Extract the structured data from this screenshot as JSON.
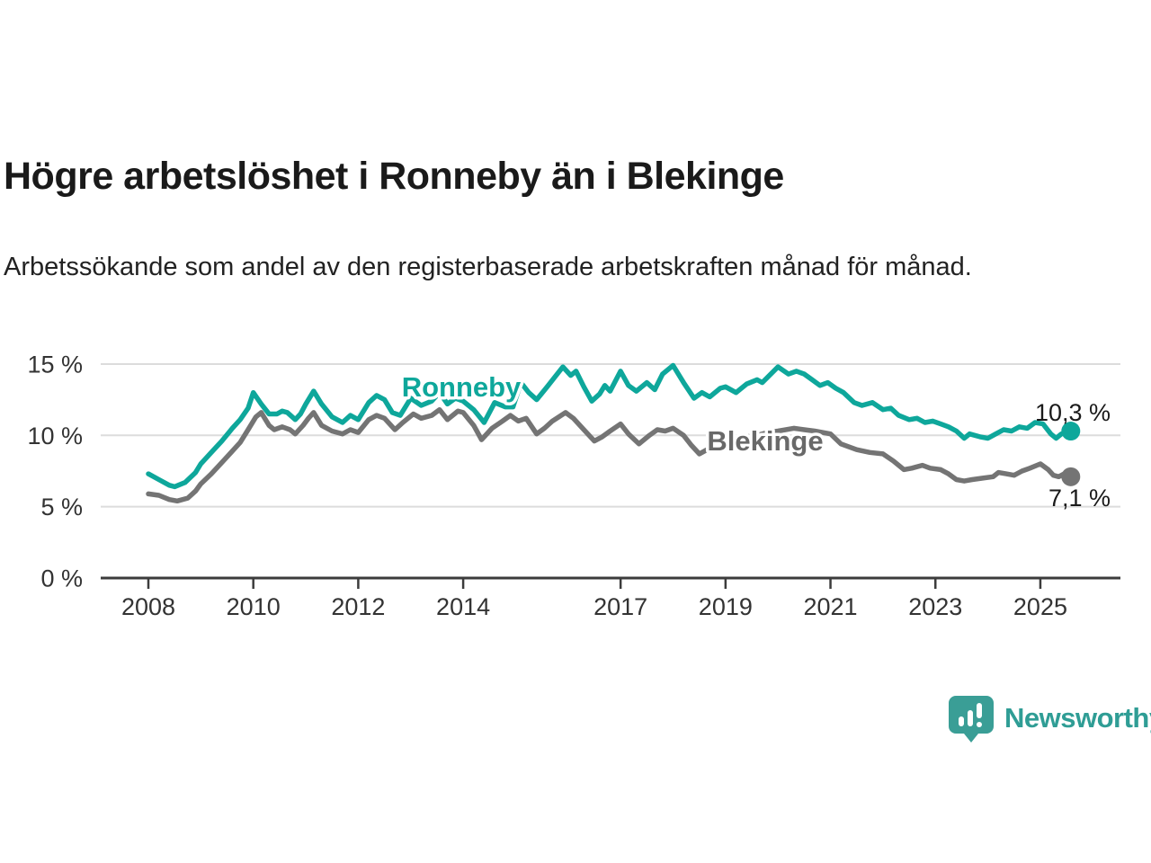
{
  "header": {
    "title": "Högre arbetslöshet i Ronneby än i Blekinge",
    "subtitle": "Arbetssökande som andel av den registerbaserade arbetskraften månad för månad."
  },
  "chart_data": {
    "type": "line",
    "title": "Högre arbetslöshet i Ronneby än i Blekinge",
    "subtitle": "Arbetssökande som andel av den registerbaserade arbetskraften månad för månad.",
    "grid": true,
    "xlim": [
      2007.1,
      2026.4
    ],
    "ylim": [
      0,
      15.8
    ],
    "x_ticks": [
      2008,
      2010,
      2012,
      2014,
      2017,
      2019,
      2021,
      2023,
      2025
    ],
    "y_ticks": [
      {
        "value": 15,
        "label": "15 %"
      },
      {
        "value": 10,
        "label": "10 %"
      },
      {
        "value": 5,
        "label": "5 %"
      },
      {
        "value": 0,
        "label": "0 %"
      }
    ],
    "series": [
      {
        "name": "Ronneby",
        "color": "#0ea79b",
        "end_label": "10,3 %",
        "points": [
          [
            2008.0,
            7.3
          ],
          [
            2008.2,
            6.9
          ],
          [
            2008.4,
            6.5
          ],
          [
            2008.5,
            6.4
          ],
          [
            2008.7,
            6.7
          ],
          [
            2008.9,
            7.4
          ],
          [
            2009.0,
            8.0
          ],
          [
            2009.2,
            8.8
          ],
          [
            2009.4,
            9.6
          ],
          [
            2009.6,
            10.5
          ],
          [
            2009.75,
            11.1
          ],
          [
            2009.9,
            11.9
          ],
          [
            2010.0,
            13.0
          ],
          [
            2010.15,
            12.2
          ],
          [
            2010.3,
            11.5
          ],
          [
            2010.45,
            11.5
          ],
          [
            2010.55,
            11.7
          ],
          [
            2010.65,
            11.6
          ],
          [
            2010.8,
            11.1
          ],
          [
            2010.9,
            11.5
          ],
          [
            2011.0,
            12.2
          ],
          [
            2011.15,
            13.1
          ],
          [
            2011.3,
            12.2
          ],
          [
            2011.5,
            11.3
          ],
          [
            2011.7,
            10.9
          ],
          [
            2011.85,
            11.4
          ],
          [
            2012.0,
            11.1
          ],
          [
            2012.2,
            12.3
          ],
          [
            2012.35,
            12.8
          ],
          [
            2012.5,
            12.5
          ],
          [
            2012.65,
            11.6
          ],
          [
            2012.8,
            11.4
          ],
          [
            2013.0,
            12.6
          ],
          [
            2013.2,
            12.1
          ],
          [
            2013.4,
            12.4
          ],
          [
            2013.55,
            13.0
          ],
          [
            2013.7,
            12.2
          ],
          [
            2013.85,
            12.6
          ],
          [
            2014.0,
            12.4
          ],
          [
            2014.2,
            11.8
          ],
          [
            2014.4,
            10.9
          ],
          [
            2014.6,
            12.3
          ],
          [
            2014.8,
            12.0
          ],
          [
            2014.95,
            12.0
          ],
          [
            2015.1,
            13.7
          ],
          [
            2015.25,
            13.0
          ],
          [
            2015.4,
            12.5
          ],
          [
            2015.6,
            13.4
          ],
          [
            2015.75,
            14.1
          ],
          [
            2015.9,
            14.8
          ],
          [
            2016.05,
            14.2
          ],
          [
            2016.15,
            14.5
          ],
          [
            2016.3,
            13.4
          ],
          [
            2016.45,
            12.4
          ],
          [
            2016.6,
            12.9
          ],
          [
            2016.7,
            13.5
          ],
          [
            2016.8,
            13.1
          ],
          [
            2017.0,
            14.5
          ],
          [
            2017.15,
            13.5
          ],
          [
            2017.3,
            13.1
          ],
          [
            2017.5,
            13.7
          ],
          [
            2017.65,
            13.2
          ],
          [
            2017.8,
            14.3
          ],
          [
            2018.0,
            14.9
          ],
          [
            2018.2,
            13.7
          ],
          [
            2018.4,
            12.6
          ],
          [
            2018.55,
            13.0
          ],
          [
            2018.7,
            12.7
          ],
          [
            2018.9,
            13.3
          ],
          [
            2019.0,
            13.4
          ],
          [
            2019.2,
            13.0
          ],
          [
            2019.4,
            13.6
          ],
          [
            2019.6,
            13.9
          ],
          [
            2019.7,
            13.7
          ],
          [
            2020.0,
            14.8
          ],
          [
            2020.2,
            14.3
          ],
          [
            2020.35,
            14.5
          ],
          [
            2020.5,
            14.3
          ],
          [
            2020.65,
            13.9
          ],
          [
            2020.8,
            13.5
          ],
          [
            2020.95,
            13.7
          ],
          [
            2021.1,
            13.3
          ],
          [
            2021.25,
            13.0
          ],
          [
            2021.45,
            12.3
          ],
          [
            2021.6,
            12.1
          ],
          [
            2021.8,
            12.3
          ],
          [
            2022.0,
            11.8
          ],
          [
            2022.15,
            11.9
          ],
          [
            2022.3,
            11.4
          ],
          [
            2022.5,
            11.1
          ],
          [
            2022.65,
            11.2
          ],
          [
            2022.8,
            10.9
          ],
          [
            2022.95,
            11.0
          ],
          [
            2023.1,
            10.8
          ],
          [
            2023.25,
            10.6
          ],
          [
            2023.4,
            10.3
          ],
          [
            2023.55,
            9.8
          ],
          [
            2023.65,
            10.1
          ],
          [
            2023.85,
            9.9
          ],
          [
            2024.0,
            9.8
          ],
          [
            2024.15,
            10.1
          ],
          [
            2024.3,
            10.4
          ],
          [
            2024.45,
            10.3
          ],
          [
            2024.6,
            10.6
          ],
          [
            2024.75,
            10.5
          ],
          [
            2024.9,
            10.9
          ],
          [
            2025.05,
            10.8
          ],
          [
            2025.2,
            10.1
          ],
          [
            2025.3,
            9.8
          ],
          [
            2025.4,
            10.1
          ],
          [
            2025.58,
            10.3
          ]
        ]
      },
      {
        "name": "Blekinge",
        "color": "#747474",
        "end_label": "7,1 %",
        "points": [
          [
            2008.0,
            5.9
          ],
          [
            2008.2,
            5.8
          ],
          [
            2008.4,
            5.5
          ],
          [
            2008.55,
            5.4
          ],
          [
            2008.75,
            5.6
          ],
          [
            2008.9,
            6.1
          ],
          [
            2009.0,
            6.6
          ],
          [
            2009.2,
            7.3
          ],
          [
            2009.4,
            8.1
          ],
          [
            2009.6,
            8.9
          ],
          [
            2009.75,
            9.5
          ],
          [
            2009.9,
            10.4
          ],
          [
            2010.05,
            11.3
          ],
          [
            2010.15,
            11.6
          ],
          [
            2010.3,
            10.7
          ],
          [
            2010.4,
            10.4
          ],
          [
            2010.55,
            10.6
          ],
          [
            2010.7,
            10.4
          ],
          [
            2010.8,
            10.1
          ],
          [
            2010.95,
            10.7
          ],
          [
            2011.05,
            11.2
          ],
          [
            2011.15,
            11.6
          ],
          [
            2011.3,
            10.7
          ],
          [
            2011.5,
            10.3
          ],
          [
            2011.7,
            10.1
          ],
          [
            2011.85,
            10.4
          ],
          [
            2012.0,
            10.2
          ],
          [
            2012.2,
            11.1
          ],
          [
            2012.35,
            11.4
          ],
          [
            2012.5,
            11.2
          ],
          [
            2012.7,
            10.4
          ],
          [
            2012.85,
            10.9
          ],
          [
            2013.05,
            11.5
          ],
          [
            2013.2,
            11.2
          ],
          [
            2013.4,
            11.4
          ],
          [
            2013.55,
            11.8
          ],
          [
            2013.7,
            11.1
          ],
          [
            2013.9,
            11.7
          ],
          [
            2014.0,
            11.6
          ],
          [
            2014.2,
            10.7
          ],
          [
            2014.35,
            9.7
          ],
          [
            2014.55,
            10.5
          ],
          [
            2014.75,
            11.0
          ],
          [
            2014.9,
            11.4
          ],
          [
            2015.05,
            11.0
          ],
          [
            2015.2,
            11.2
          ],
          [
            2015.4,
            10.1
          ],
          [
            2015.55,
            10.5
          ],
          [
            2015.7,
            11.0
          ],
          [
            2015.95,
            11.6
          ],
          [
            2016.1,
            11.2
          ],
          [
            2016.3,
            10.4
          ],
          [
            2016.5,
            9.6
          ],
          [
            2016.65,
            9.9
          ],
          [
            2016.8,
            10.3
          ],
          [
            2017.0,
            10.8
          ],
          [
            2017.15,
            10.1
          ],
          [
            2017.35,
            9.4
          ],
          [
            2017.55,
            10.0
          ],
          [
            2017.7,
            10.4
          ],
          [
            2017.85,
            10.3
          ],
          [
            2018.0,
            10.5
          ],
          [
            2018.2,
            10.0
          ],
          [
            2018.35,
            9.3
          ],
          [
            2018.5,
            8.7
          ],
          [
            2018.7,
            9.1
          ],
          [
            2018.9,
            9.4
          ],
          [
            2019.0,
            9.5
          ],
          [
            2019.2,
            9.7
          ],
          [
            2019.4,
            9.9
          ],
          [
            2019.6,
            10.0
          ],
          [
            2019.8,
            10.2
          ],
          [
            2020.0,
            10.3
          ],
          [
            2020.3,
            10.5
          ],
          [
            2020.5,
            10.4
          ],
          [
            2020.7,
            10.3
          ],
          [
            2020.85,
            10.2
          ],
          [
            2021.0,
            10.1
          ],
          [
            2021.2,
            9.4
          ],
          [
            2021.5,
            9.0
          ],
          [
            2021.75,
            8.8
          ],
          [
            2022.0,
            8.7
          ],
          [
            2022.2,
            8.2
          ],
          [
            2022.4,
            7.6
          ],
          [
            2022.55,
            7.7
          ],
          [
            2022.75,
            7.9
          ],
          [
            2022.9,
            7.7
          ],
          [
            2023.1,
            7.6
          ],
          [
            2023.25,
            7.3
          ],
          [
            2023.4,
            6.9
          ],
          [
            2023.55,
            6.8
          ],
          [
            2023.7,
            6.9
          ],
          [
            2023.9,
            7.0
          ],
          [
            2024.1,
            7.1
          ],
          [
            2024.2,
            7.4
          ],
          [
            2024.35,
            7.3
          ],
          [
            2024.5,
            7.2
          ],
          [
            2024.65,
            7.5
          ],
          [
            2024.8,
            7.7
          ],
          [
            2025.0,
            8.0
          ],
          [
            2025.15,
            7.6
          ],
          [
            2025.25,
            7.2
          ],
          [
            2025.35,
            7.1
          ],
          [
            2025.45,
            7.3
          ],
          [
            2025.58,
            7.1
          ]
        ]
      }
    ],
    "legend_position": "inline-labels"
  },
  "footer": {
    "brand": "Newsworthy"
  },
  "colors": {
    "accent_teal": "#0ea79b",
    "series_gray": "#747474",
    "brand_teal": "#2f9d95",
    "axis_text": "#333333",
    "gridline": "#dcdcdc",
    "axis_line": "#3c3c3c"
  }
}
